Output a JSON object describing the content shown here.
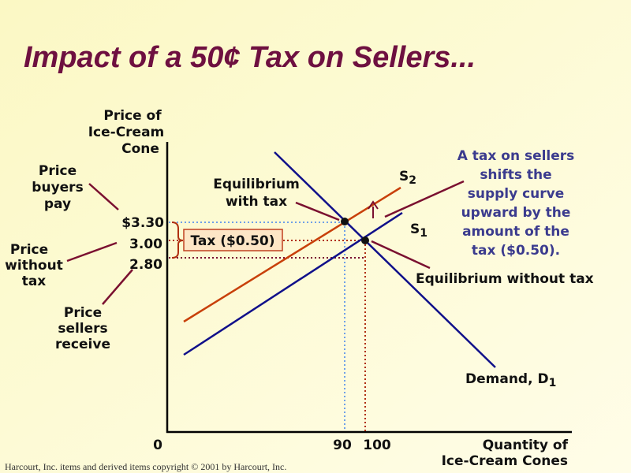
{
  "title": "Impact of a 50¢ Tax on Sellers...",
  "axes": {
    "y_label": [
      "Price of",
      "Ice-Cream",
      "Cone"
    ],
    "x_label": [
      "Quantity of",
      "Ice-Cream Cones"
    ],
    "origin": "0",
    "x_ticks": [
      "90",
      "100"
    ],
    "y_ticks": [
      "$3.30",
      "3.00",
      "2.80"
    ]
  },
  "curves": {
    "supply_with_tax": {
      "label": "S",
      "subscript": "2"
    },
    "supply": {
      "label": "S",
      "subscript": "1"
    },
    "demand": {
      "label": "Demand, D",
      "subscript": "1"
    }
  },
  "annotations": {
    "price_buyers_pay": [
      "Price",
      "buyers",
      "pay"
    ],
    "price_without_tax": [
      "Price",
      "without",
      "tax"
    ],
    "price_sellers_receive": [
      "Price",
      "sellers",
      "receive"
    ],
    "equilibrium_with_tax": [
      "Equilibrium",
      "with tax"
    ],
    "equilibrium_without_tax": "Equilibrium without tax",
    "tax": "Tax ($0.50)",
    "note": [
      "A tax on sellers",
      "shifts the",
      "supply curve",
      "upward by the",
      "amount of the",
      "tax ($0.50)."
    ]
  },
  "footer": "Harcourt, Inc. items and derived items copyright © 2001  by Harcourt, Inc."
}
